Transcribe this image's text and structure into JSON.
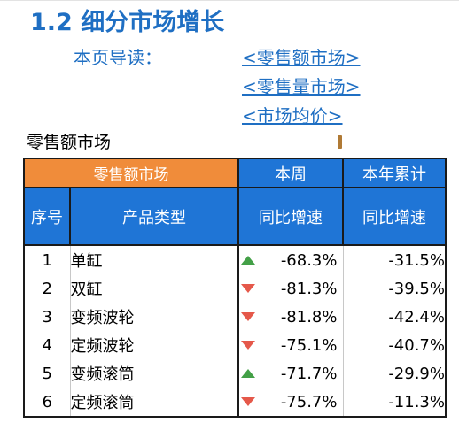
{
  "title": "1.2 细分市场增长",
  "guide": {
    "label": "本页导读：",
    "links": [
      "<零售额市场>",
      "<零售量市场>",
      "<市场均价>"
    ]
  },
  "section_label": "零售额市场",
  "table": {
    "group_header": "零售额市场",
    "week_header": "本周",
    "year_header": "本年累计",
    "col_index": "序号",
    "col_type": "产品类型",
    "col_week_sub": "同比增速",
    "col_year_sub": "同比增速",
    "rows": [
      {
        "index": "1",
        "type": "单缸",
        "trend": "up",
        "week": "-68.3%",
        "year": "-31.5%"
      },
      {
        "index": "2",
        "type": "双缸",
        "trend": "down",
        "week": "-81.3%",
        "year": "-39.5%"
      },
      {
        "index": "3",
        "type": "变频波轮",
        "trend": "down",
        "week": "-81.8%",
        "year": "-42.4%"
      },
      {
        "index": "4",
        "type": "定频波轮",
        "trend": "down",
        "week": "-75.1%",
        "year": "-40.7%"
      },
      {
        "index": "5",
        "type": "变频滚筒",
        "trend": "up",
        "week": "-71.7%",
        "year": "-29.9%"
      },
      {
        "index": "6",
        "type": "定频滚筒",
        "trend": "down",
        "week": "-75.7%",
        "year": "-11.3%"
      }
    ]
  },
  "colors": {
    "accent_blue": "#1f6fc3",
    "header_orange": "#f08c3a",
    "header_blue": "#1f75d6",
    "up_green": "#43a047",
    "down_red": "#e5584a"
  }
}
